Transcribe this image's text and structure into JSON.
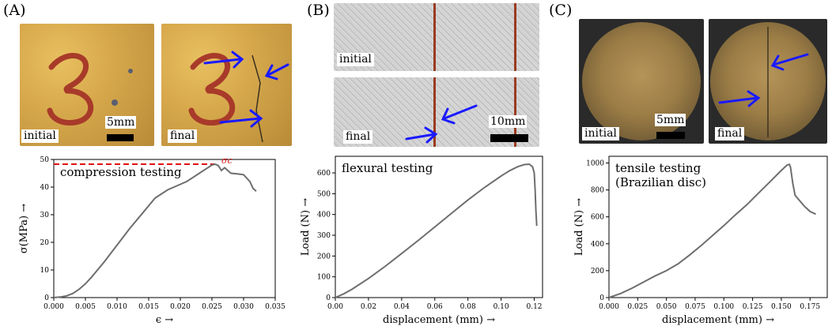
{
  "panels": [
    {
      "letter": "(A)",
      "photo_labels": [
        "initial",
        "final"
      ],
      "scale_label": "5mm",
      "specimen_mark": "3",
      "colors": {
        "photo": "#d4a64a",
        "arrow": "#1a1aff"
      }
    },
    {
      "letter": "(B)",
      "photo_labels": [
        "initial",
        "final"
      ],
      "scale_label": "10mm",
      "colors": {
        "photo": "#cfcfcf",
        "arrow": "#1a1aff"
      }
    },
    {
      "letter": "(C)",
      "photo_labels": [
        "initial",
        "final"
      ],
      "scale_label": "5mm",
      "colors": {
        "photo": "#9c7d46",
        "arrow": "#1a1aff"
      }
    }
  ],
  "chart_data": [
    {
      "type": "line",
      "annotation": "compression testing",
      "xlabel": "ϵ →",
      "ylabel": "σ(MPa) →",
      "xlim": [
        0,
        0.035
      ],
      "ylim": [
        0,
        50
      ],
      "xticks": [
        "0.000",
        "0.005",
        "0.010",
        "0.015",
        "0.020",
        "0.025",
        "0.030",
        "0.035"
      ],
      "yticks": [
        "0",
        "10",
        "20",
        "30",
        "40",
        "50"
      ],
      "peak_label": "σc",
      "peak_value": 48.3,
      "colors": {
        "line": "#6e6e6e",
        "peak": "#e01010"
      },
      "series": [
        {
          "x": [
            0,
            0.001,
            0.002,
            0.003,
            0.004,
            0.005,
            0.006,
            0.008,
            0.01,
            0.012,
            0.014,
            0.016,
            0.018,
            0.019,
            0.02,
            0.021,
            0.022,
            0.023,
            0.024,
            0.025,
            0.0255,
            0.026,
            0.0265,
            0.027,
            0.0275,
            0.028,
            0.029,
            0.03,
            0.031,
            0.0315,
            0.032
          ],
          "y": [
            0,
            0.2,
            0.6,
            1.5,
            3.0,
            5.0,
            7.5,
            13,
            19,
            25,
            30.5,
            36,
            39,
            40,
            41,
            42,
            43.5,
            45,
            46.5,
            48,
            48.3,
            47.8,
            46,
            47,
            46,
            45,
            44.8,
            44.5,
            42,
            39.5,
            38.5
          ]
        }
      ]
    },
    {
      "type": "line",
      "annotation": "flexural testing",
      "xlabel": "displacement (mm) →",
      "ylabel": "Load (N) →",
      "xlim": [
        0,
        0.125
      ],
      "ylim": [
        0,
        680
      ],
      "xticks": [
        "0.00",
        "0.02",
        "0.04",
        "0.06",
        "0.08",
        "0.10",
        "0.12"
      ],
      "yticks": [
        "0",
        "100",
        "200",
        "300",
        "400",
        "500",
        "600"
      ],
      "colors": {
        "line": "#6e6e6e"
      },
      "series": [
        {
          "x": [
            0,
            0.005,
            0.01,
            0.02,
            0.03,
            0.04,
            0.05,
            0.06,
            0.07,
            0.08,
            0.09,
            0.1,
            0.105,
            0.11,
            0.114,
            0.117,
            0.119,
            0.12,
            0.1205,
            0.121,
            0.1215
          ],
          "y": [
            0,
            18,
            40,
            92,
            150,
            212,
            275,
            340,
            405,
            470,
            530,
            585,
            610,
            630,
            640,
            642,
            630,
            600,
            520,
            420,
            345
          ]
        }
      ]
    },
    {
      "type": "line",
      "annotation": "tensile testing\n(Brazilian disc)",
      "xlabel": "displacement (mm) →",
      "ylabel": "Load (N) →",
      "xlim": [
        0,
        0.19
      ],
      "ylim": [
        0,
        1050
      ],
      "xticks": [
        "0.000",
        "0.025",
        "0.050",
        "0.075",
        "0.100",
        "0.125",
        "0.150",
        "0.175"
      ],
      "yticks": [
        "0",
        "200",
        "400",
        "600",
        "800",
        "1000"
      ],
      "colors": {
        "line": "#6e6e6e"
      },
      "series": [
        {
          "x": [
            0,
            0.01,
            0.02,
            0.03,
            0.04,
            0.05,
            0.055,
            0.06,
            0.07,
            0.08,
            0.09,
            0.1,
            0.11,
            0.12,
            0.13,
            0.14,
            0.15,
            0.155,
            0.157,
            0.158,
            0.16,
            0.162,
            0.165,
            0.17,
            0.175,
            0.18
          ],
          "y": [
            0,
            30,
            70,
            115,
            160,
            200,
            225,
            250,
            315,
            385,
            460,
            535,
            615,
            690,
            775,
            860,
            945,
            985,
            990,
            970,
            850,
            760,
            730,
            680,
            640,
            620
          ]
        }
      ]
    }
  ]
}
